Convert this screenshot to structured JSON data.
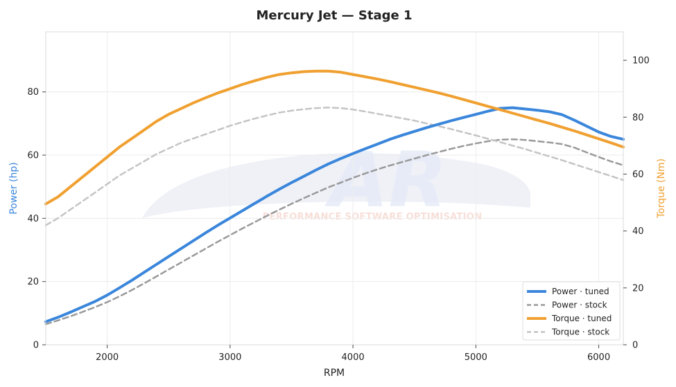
{
  "chart_data": {
    "type": "line",
    "title": "Mercury Jet — Stage 1",
    "xlabel": "RPM",
    "ylabel_left": "Power (hp)",
    "ylabel_right": "Torque (Nm)",
    "xlim": [
      1500,
      6200
    ],
    "ylim_left": [
      0,
      99
    ],
    "ylim_right": [
      0,
      110
    ],
    "x_ticks": [
      2000,
      3000,
      4000,
      5000,
      6000
    ],
    "y_left_ticks": [
      0,
      20,
      40,
      60,
      80
    ],
    "y_right_ticks": [
      0,
      20,
      40,
      60,
      80,
      100
    ],
    "grid": true,
    "legend_position": "bottom-right",
    "x": [
      1500,
      1600,
      1700,
      1800,
      1900,
      2000,
      2100,
      2200,
      2300,
      2400,
      2500,
      2600,
      2700,
      2800,
      2900,
      3000,
      3100,
      3200,
      3300,
      3400,
      3500,
      3600,
      3700,
      3800,
      3900,
      4000,
      4100,
      4200,
      4300,
      4400,
      4500,
      4600,
      4700,
      4800,
      4900,
      5000,
      5100,
      5200,
      5300,
      5400,
      5500,
      5600,
      5700,
      5800,
      5900,
      6000,
      6100,
      6200
    ],
    "series": [
      {
        "name": "Power · tuned",
        "axis": "left",
        "color": "#3a86db",
        "dash": "solid",
        "values": [
          7.3,
          8.7,
          10.3,
          12.0,
          13.7,
          15.7,
          18.0,
          20.4,
          22.9,
          25.4,
          27.9,
          30.4,
          32.9,
          35.4,
          37.8,
          40.1,
          42.4,
          44.7,
          47.0,
          49.2,
          51.3,
          53.3,
          55.3,
          57.2,
          58.9,
          60.5,
          62.0,
          63.5,
          65.0,
          66.3,
          67.5,
          68.7,
          69.8,
          70.9,
          71.9,
          72.9,
          73.9,
          74.8,
          75.0,
          74.6,
          74.2,
          73.7,
          72.8,
          71.1,
          69.2,
          67.3,
          65.9,
          65.0
        ]
      },
      {
        "name": "Power · stock",
        "axis": "left",
        "color": "#999999",
        "dash": "dashed",
        "values": [
          6.5,
          7.7,
          9.0,
          10.4,
          11.9,
          13.5,
          15.3,
          17.3,
          19.4,
          21.6,
          23.8,
          26.0,
          28.2,
          30.4,
          32.6,
          34.7,
          36.8,
          38.8,
          40.8,
          42.7,
          44.6,
          46.4,
          48.1,
          49.8,
          51.3,
          52.8,
          54.2,
          55.5,
          56.7,
          57.8,
          58.9,
          60.0,
          61.0,
          62.0,
          62.9,
          63.7,
          64.4,
          64.9,
          65.0,
          64.8,
          64.4,
          64.0,
          63.5,
          62.4,
          60.9,
          59.4,
          58.0,
          56.8
        ]
      },
      {
        "name": "Torque · tuned",
        "axis": "right",
        "color": "#f0a030",
        "dash": "solid",
        "values": [
          49.5,
          52,
          55.5,
          59,
          62.5,
          66,
          69.5,
          72.5,
          75.5,
          78.5,
          81,
          83,
          85,
          86.8,
          88.5,
          90,
          91.5,
          92.8,
          94,
          95,
          95.6,
          96,
          96.2,
          96.2,
          95.8,
          95,
          94.2,
          93.4,
          92.5,
          91.5,
          90.5,
          89.5,
          88.5,
          87.4,
          86.2,
          85,
          83.8,
          82.6,
          81.4,
          80.2,
          79,
          77.8,
          76.5,
          75.2,
          73.8,
          72.4,
          71,
          69.5
        ]
      },
      {
        "name": "Torque · stock",
        "axis": "right",
        "color": "#c4c4c4",
        "dash": "dashed",
        "values": [
          42.0,
          44.5,
          47.5,
          50.5,
          53.5,
          56.5,
          59.5,
          62,
          64.5,
          67,
          69,
          71,
          72.5,
          74,
          75.5,
          77,
          78.3,
          79.5,
          80.6,
          81.6,
          82.3,
          82.8,
          83.2,
          83.4,
          83.2,
          82.7,
          82.0,
          81.2,
          80.4,
          79.6,
          78.8,
          77.8,
          76.8,
          75.8,
          74.7,
          73.6,
          72.4,
          71.2,
          70.0,
          68.8,
          67.5,
          66.2,
          64.9,
          63.5,
          62.1,
          60.7,
          59.3,
          57.9
        ]
      }
    ]
  },
  "watermark": {
    "text": "PERFORMANCE SOFTWARE OPTIMISATION",
    "logo_text": "AR"
  }
}
